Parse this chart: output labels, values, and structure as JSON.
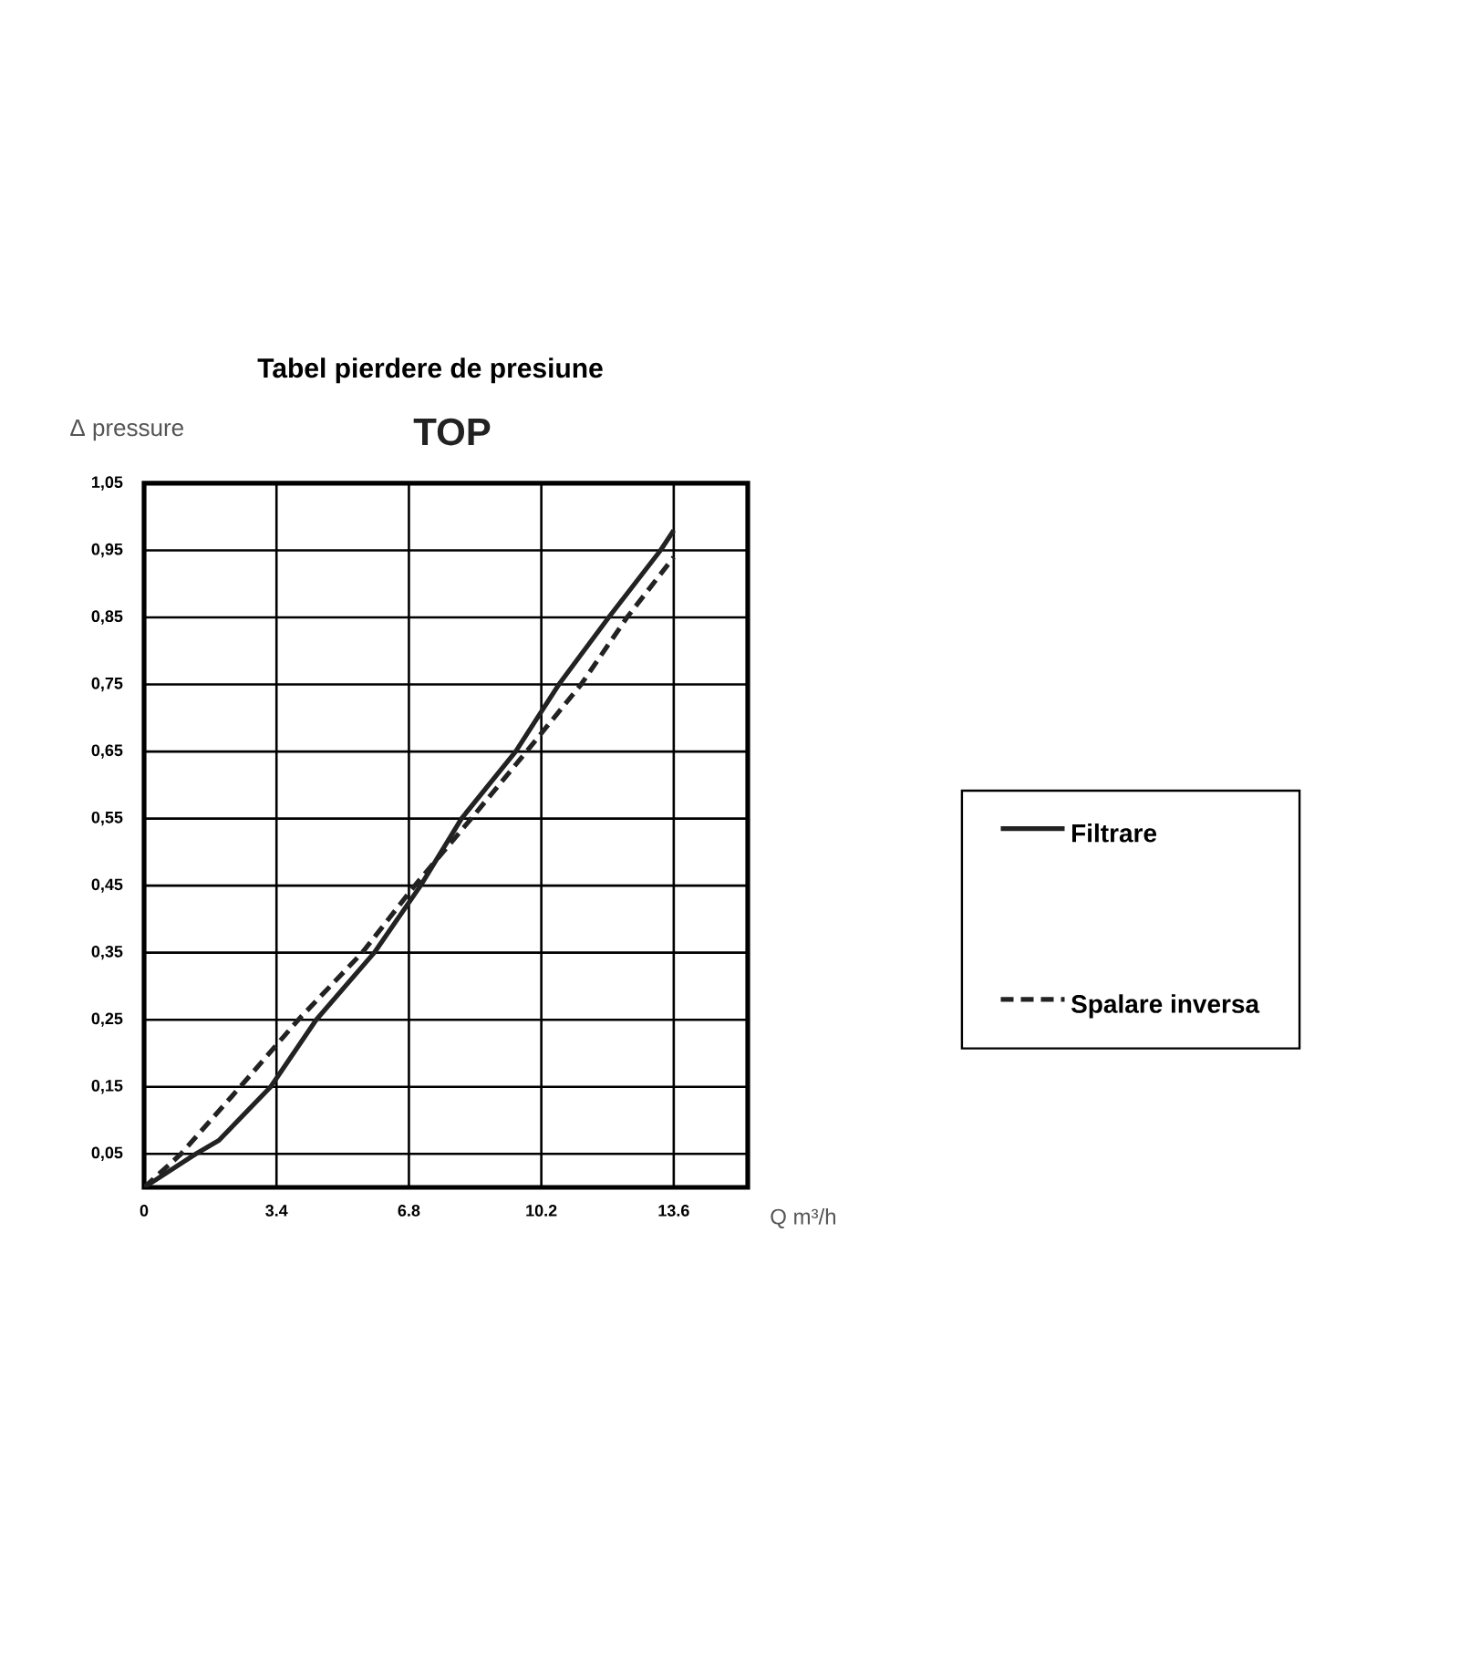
{
  "chart_data": {
    "type": "line",
    "title": "Tabel pierdere de presiune",
    "subtitle": "TOP",
    "xlabel": "Q m³/h",
    "ylabel": "Δ pressure",
    "series": [
      {
        "name": "Filtrare",
        "color": "#222222",
        "line_style": "solid",
        "x": [
          0,
          1.33,
          1.92,
          3.25,
          4.42,
          5.91,
          7.1,
          8.15,
          9.54,
          10.65,
          11.93,
          13.26,
          13.6
        ],
        "values": [
          0,
          0.05,
          0.07,
          0.15,
          0.25,
          0.35,
          0.45,
          0.55,
          0.65,
          0.75,
          0.85,
          0.95,
          0.98
        ]
      },
      {
        "name": "Spalare inversa",
        "color": "#222222",
        "line_style": "dashed",
        "x": [
          0,
          0.95,
          2.47,
          3.96,
          5.6,
          6.95,
          8.4,
          9.82,
          11.22,
          12.4,
          13.6
        ],
        "values": [
          0,
          0.05,
          0.15,
          0.25,
          0.35,
          0.45,
          0.55,
          0.65,
          0.75,
          0.85,
          0.94
        ]
      }
    ],
    "xlim": [
      0,
      15.5
    ],
    "ylim": [
      0,
      1.05
    ],
    "xticks": [
      0,
      3.4,
      6.8,
      10.2,
      13.6
    ],
    "yticks": [
      {
        "value": 0.05,
        "label": "0,05"
      },
      {
        "value": 0.15,
        "label": "0,15"
      },
      {
        "value": 0.25,
        "label": "0,25"
      },
      {
        "value": 0.35,
        "label": "0,35"
      },
      {
        "value": 0.45,
        "label": "0,45"
      },
      {
        "value": 0.55,
        "label": "0,55"
      },
      {
        "value": 0.65,
        "label": "0,65"
      },
      {
        "value": 0.75,
        "label": "0,75"
      },
      {
        "value": 0.85,
        "label": "0,85"
      },
      {
        "value": 0.95,
        "label": "0,95"
      },
      {
        "value": 1.05,
        "label": "1,05"
      }
    ],
    "grid": true,
    "legend": "right",
    "marker": "none"
  }
}
